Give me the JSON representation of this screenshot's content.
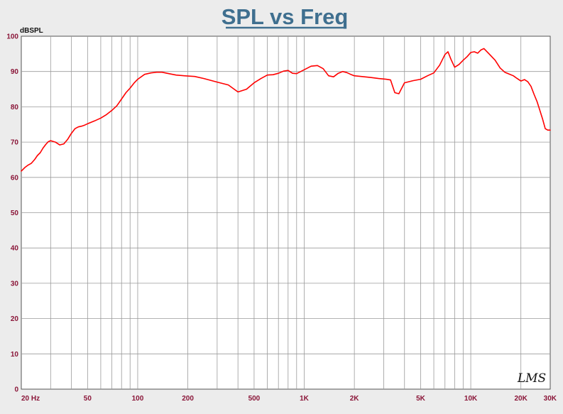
{
  "chart_data": {
    "type": "line",
    "title": "SPL vs Freq",
    "ylabel": "dBSPL",
    "xlabel": "",
    "x_scale": "log",
    "xlim": [
      20,
      30000
    ],
    "ylim": [
      0,
      100
    ],
    "grid": true,
    "y_ticks": [
      0,
      10,
      20,
      30,
      40,
      50,
      60,
      70,
      80,
      90,
      100
    ],
    "x_tick_labels": [
      {
        "value": 20,
        "label": "20  Hz"
      },
      {
        "value": 50,
        "label": "50"
      },
      {
        "value": 100,
        "label": "100"
      },
      {
        "value": 200,
        "label": "200"
      },
      {
        "value": 500,
        "label": "500"
      },
      {
        "value": 1000,
        "label": "1K"
      },
      {
        "value": 2000,
        "label": "2K"
      },
      {
        "value": 5000,
        "label": "5K"
      },
      {
        "value": 10000,
        "label": "10K"
      },
      {
        "value": 20000,
        "label": "20K"
      },
      {
        "value": 30000,
        "label": "30K"
      }
    ],
    "series": [
      {
        "color": "#ff0000",
        "x": [
          20,
          21,
          22,
          23,
          24,
          25,
          26,
          27,
          28,
          29,
          30,
          32,
          34,
          36,
          38,
          40,
          42,
          44,
          46,
          48,
          50,
          55,
          60,
          65,
          70,
          75,
          80,
          85,
          90,
          95,
          100,
          110,
          120,
          130,
          140,
          150,
          170,
          190,
          220,
          250,
          300,
          350,
          400,
          450,
          500,
          550,
          600,
          650,
          700,
          750,
          800,
          850,
          900,
          1000,
          1100,
          1200,
          1300,
          1400,
          1500,
          1600,
          1700,
          1800,
          1900,
          2000,
          2200,
          2500,
          2800,
          3100,
          3300,
          3500,
          3700,
          4000,
          4500,
          5000,
          5500,
          6000,
          6500,
          7000,
          7300,
          7600,
          8000,
          8500,
          9000,
          9500,
          10000,
          10500,
          11000,
          11500,
          12000,
          13000,
          14000,
          15000,
          16000,
          17000,
          18000,
          19000,
          20000,
          21000,
          22000,
          23000,
          24000,
          25000,
          26000,
          27000,
          28000,
          29000,
          30000
        ],
        "y": [
          61.8,
          62.8,
          63.5,
          64.0,
          65.0,
          66.2,
          67.0,
          68.3,
          69.3,
          70.1,
          70.4,
          70.0,
          69.2,
          69.5,
          70.8,
          72.5,
          73.8,
          74.3,
          74.5,
          74.8,
          75.2,
          76.0,
          76.8,
          77.8,
          79.0,
          80.3,
          82.2,
          84.0,
          85.3,
          86.7,
          87.8,
          89.2,
          89.6,
          89.8,
          89.8,
          89.5,
          89.0,
          88.8,
          88.6,
          88.0,
          87.0,
          86.2,
          84.2,
          85.0,
          86.8,
          88.0,
          89.0,
          89.1,
          89.5,
          90.1,
          90.3,
          89.5,
          89.4,
          90.5,
          91.5,
          91.7,
          90.8,
          88.8,
          88.5,
          89.5,
          90.0,
          89.7,
          89.2,
          88.8,
          88.6,
          88.3,
          88.0,
          87.8,
          87.6,
          84.0,
          83.7,
          86.8,
          87.4,
          87.8,
          88.8,
          89.6,
          91.8,
          94.8,
          95.6,
          93.5,
          91.2,
          92.0,
          93.2,
          94.2,
          95.4,
          95.6,
          95.2,
          96.1,
          96.5,
          94.8,
          93.2,
          91.0,
          89.8,
          89.3,
          88.8,
          88.0,
          87.3,
          87.7,
          87.1,
          85.8,
          83.5,
          81.5,
          79.0,
          76.5,
          73.8,
          73.4,
          73.4
        ]
      }
    ]
  },
  "watermark": "LMS"
}
